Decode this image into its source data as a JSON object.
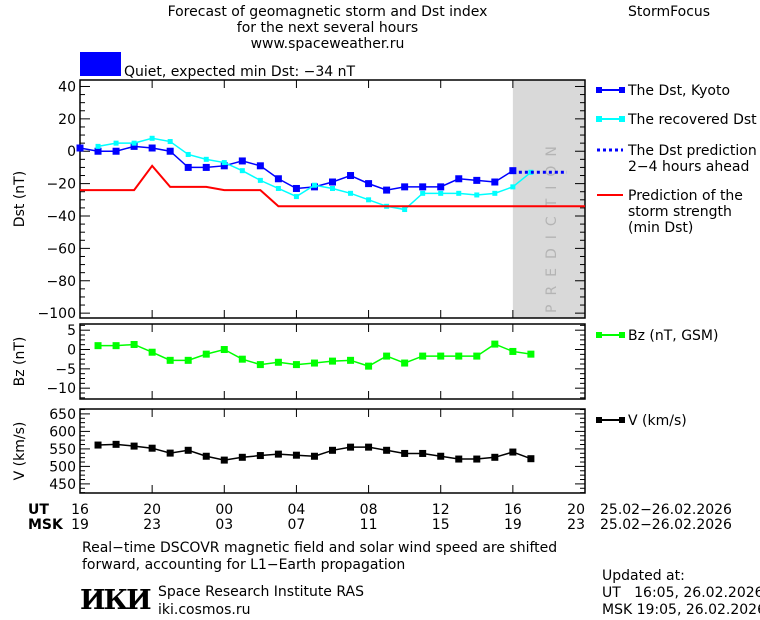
{
  "header": {
    "title_lines": [
      "Forecast of geomagnetic storm and Dst index",
      "for the next several hours",
      "www.spaceweather.ru"
    ],
    "brand": "StormFocus",
    "status_color": "#0000ff",
    "status_text": "Quiet, expected min Dst: −34 nT"
  },
  "footer": {
    "note_lines": [
      "Real−time DSCOVR magnetic field and solar wind speed are shifted",
      "forward, accounting for L1−Earth propagation"
    ],
    "institute": "Space Research Institute RAS",
    "site": "iki.cosmos.ru",
    "logo_text": "ИКИ",
    "updated_label": "Updated at:",
    "updated_ut": "UT   16:05, 26.02.2026",
    "updated_msk": "MSK 19:05, 26.02.2026"
  },
  "chart_data": {
    "type": "line",
    "x_axis": {
      "ut_label": "UT",
      "msk_label": "MSK",
      "ut_ticks": [
        "16",
        "20",
        "00",
        "04",
        "08",
        "12",
        "16",
        "20"
      ],
      "msk_ticks": [
        "19",
        "23",
        "03",
        "07",
        "11",
        "15",
        "19",
        "23"
      ],
      "ut_range": "25.02−26.02.2026",
      "msk_range": "25.02−26.02.2026",
      "range_hours": [
        0,
        28
      ],
      "prediction_from_hour": 24,
      "prediction_label": "PREDICTION"
    },
    "panels": [
      {
        "ylabel": "Dst (nT)",
        "ylim": [
          -103,
          44
        ],
        "yticks": [
          40,
          20,
          0,
          -20,
          -40,
          -60,
          -80,
          -100
        ],
        "series": [
          {
            "name": "The Dst, Kyoto",
            "color": "#0000ff",
            "marker": "square",
            "x": [
              0,
              1,
              2,
              3,
              4,
              5,
              6,
              7,
              8,
              9,
              10,
              11,
              12,
              13,
              14,
              15,
              16,
              17,
              18,
              19,
              20,
              21,
              22,
              23,
              24
            ],
            "values": [
              2,
              0,
              0,
              3,
              2,
              0,
              -10,
              -10,
              -9,
              -6,
              -9,
              -17,
              -23,
              -22,
              -19,
              -15,
              -20,
              -24,
              -22,
              -22,
              -22,
              -17,
              -18,
              -19,
              -12
            ]
          },
          {
            "name": "The recovered Dst",
            "color": "#00ffff",
            "marker": "small-square",
            "x": [
              1,
              2,
              3,
              4,
              5,
              6,
              7,
              8,
              9,
              10,
              11,
              12,
              13,
              14,
              15,
              16,
              17,
              18,
              19,
              20,
              21,
              22,
              23,
              24,
              25
            ],
            "values": [
              3,
              5,
              5,
              8,
              6,
              -2,
              -5,
              -7,
              -12,
              -18,
              -23,
              -28,
              -21,
              -23,
              -26,
              -30,
              -34,
              -36,
              -26,
              -26,
              -26,
              -27,
              -26,
              -22,
              -13
            ]
          },
          {
            "name": "The Dst prediction 2−4 hours ahead",
            "color": "#0000ff",
            "style": "dotted",
            "x": [
              24,
              27
            ],
            "values": [
              -13,
              -13
            ]
          },
          {
            "name": "Prediction of the storm strength (min Dst)",
            "color": "#ff0000",
            "x": [
              0,
              3,
              4,
              5,
              7,
              8,
              9,
              10,
              11,
              28
            ],
            "values": [
              -24,
              -24,
              -9,
              -22,
              -22,
              -24,
              -24,
              -24,
              -34,
              -34
            ]
          }
        ]
      },
      {
        "ylabel": "Bz (nT)",
        "ylim": [
          -12.8,
          6.6
        ],
        "yticks": [
          5,
          0,
          -5,
          -10
        ],
        "series": [
          {
            "name": "Bz (nT, GSM)",
            "color": "#00ff00",
            "marker": "square",
            "x": [
              1,
              2,
              3,
              4,
              5,
              6,
              7,
              8,
              9,
              10,
              11,
              12,
              13,
              14,
              15,
              16,
              17,
              18,
              19,
              20,
              21,
              22,
              23,
              24,
              25
            ],
            "values": [
              1,
              1,
              1.3,
              -0.7,
              -2.8,
              -2.8,
              -1.2,
              0,
              -2.5,
              -3.9,
              -3.3,
              -3.9,
              -3.5,
              -3,
              -2.8,
              -4.3,
              -1.7,
              -3.5,
              -1.7,
              -1.7,
              -1.7,
              -1.7,
              1.4,
              -0.5,
              -1.2
            ]
          }
        ]
      },
      {
        "ylabel": "V (km/s)",
        "ylim": [
          424,
          664
        ],
        "yticks": [
          650,
          600,
          550,
          500,
          450
        ],
        "series": [
          {
            "name": "V (km/s)",
            "color": "#000000",
            "marker": "square",
            "x": [
              1,
              2,
              3,
              4,
              5,
              6,
              7,
              8,
              9,
              10,
              11,
              12,
              13,
              14,
              15,
              16,
              17,
              18,
              19,
              20,
              21,
              22,
              23,
              24,
              25
            ],
            "values": [
              561,
              563,
              558,
              552,
              538,
              546,
              529,
              518,
              526,
              531,
              535,
              532,
              529,
              546,
              555,
              555,
              546,
              537,
              537,
              529,
              521,
              521,
              526,
              541,
              522
            ]
          }
        ]
      }
    ]
  }
}
